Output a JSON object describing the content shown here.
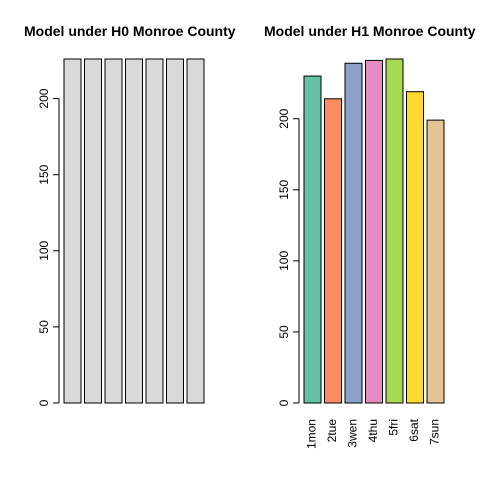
{
  "chart_data": [
    {
      "type": "bar",
      "title": "Model under H0 Monroe County",
      "categories": [
        "",
        "",
        "",
        "",
        "",
        "",
        ""
      ],
      "values": [
        226,
        226,
        226,
        226,
        226,
        226,
        226
      ],
      "colors": [
        "#d9d9d9",
        "#d9d9d9",
        "#d9d9d9",
        "#d9d9d9",
        "#d9d9d9",
        "#d9d9d9",
        "#d9d9d9"
      ],
      "yticks": [
        0,
        50,
        100,
        150,
        200
      ],
      "ylim": [
        0,
        226
      ],
      "xlabel": "",
      "ylabel": "",
      "grid": false
    },
    {
      "type": "bar",
      "title": "Model under H1 Monroe County",
      "categories": [
        "1mon",
        "2tue",
        "3wen",
        "4thu",
        "5fri",
        "6sat",
        "7sun"
      ],
      "values": [
        230,
        214,
        239,
        241,
        242,
        219,
        199
      ],
      "colors": [
        "#66c2a5",
        "#fc8d62",
        "#8da0cb",
        "#e78ac3",
        "#a6d854",
        "#ffd92f",
        "#e5c494"
      ],
      "yticks": [
        0,
        50,
        100,
        150,
        200
      ],
      "ylim": [
        0,
        242
      ],
      "xlabel": "",
      "ylabel": "",
      "grid": false
    }
  ]
}
